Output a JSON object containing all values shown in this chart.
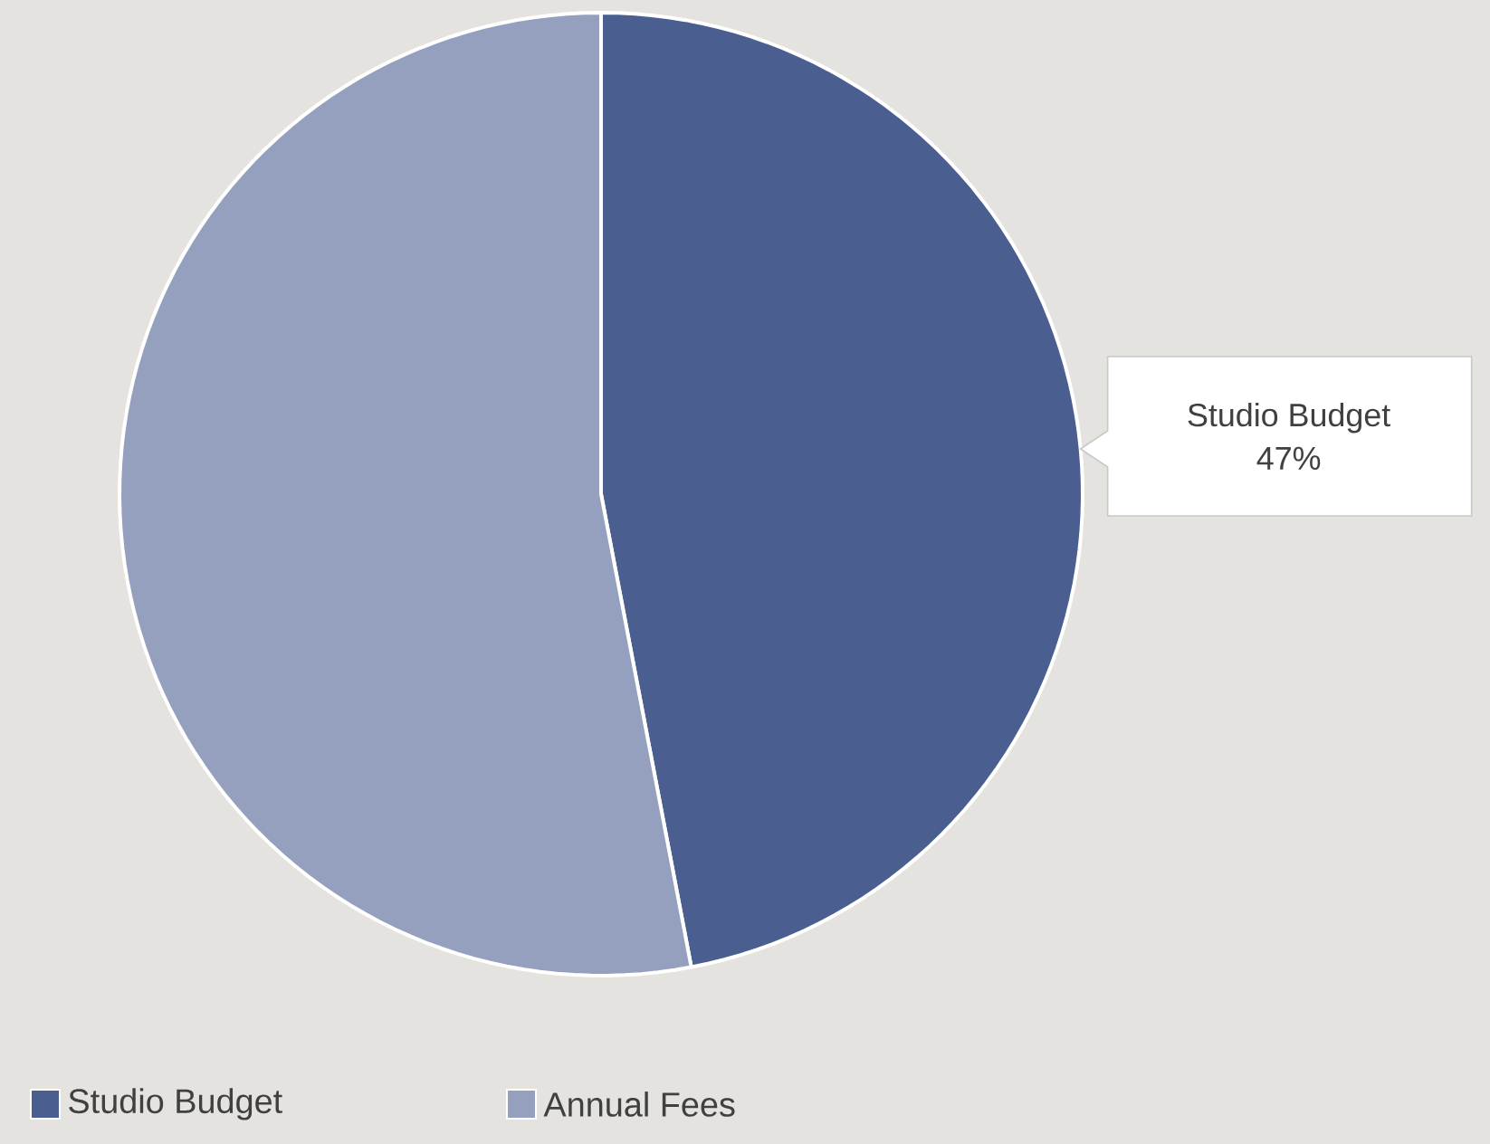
{
  "chart_data": {
    "type": "pie",
    "categories": [
      "Studio Budget",
      "Annual Fees"
    ],
    "values": [
      47,
      53
    ],
    "colors": [
      "#4a5e8f",
      "#95a0bf"
    ],
    "value_labels": [
      "47%",
      null
    ],
    "legend": "bottom left"
  }
}
